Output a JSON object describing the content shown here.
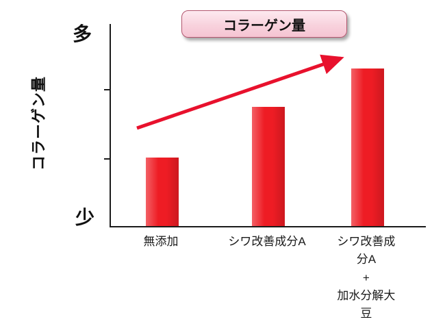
{
  "header": {
    "title_badge": "コラーゲン量"
  },
  "y_axis": {
    "title": "コラーゲン量",
    "max_label": "多",
    "min_label": "少"
  },
  "chart_data": {
    "type": "bar",
    "title": "コラーゲン量",
    "categories": [
      "無添加",
      "シワ改善成分A",
      "シワ改善成分A\n+\n加水分解大豆"
    ],
    "values": [
      34,
      59,
      78
    ],
    "xlabel": "",
    "ylabel": "コラーゲン量",
    "ylim": [
      0,
      100
    ],
    "y_tick_labels": [
      "少",
      "多"
    ],
    "value_scale": "relative-percent-of-axis (no numeric scale shown)",
    "grid": false,
    "legend": false,
    "bar_color": "#ee1c24",
    "bar_centers_pct": [
      16.3,
      50,
      81.5
    ],
    "trend_arrow": {
      "color": "#e8112d",
      "description": "straight red arrow rising from above first bar to above third bar",
      "from": [
        38,
        152
      ],
      "to": [
        336,
        50
      ]
    }
  }
}
